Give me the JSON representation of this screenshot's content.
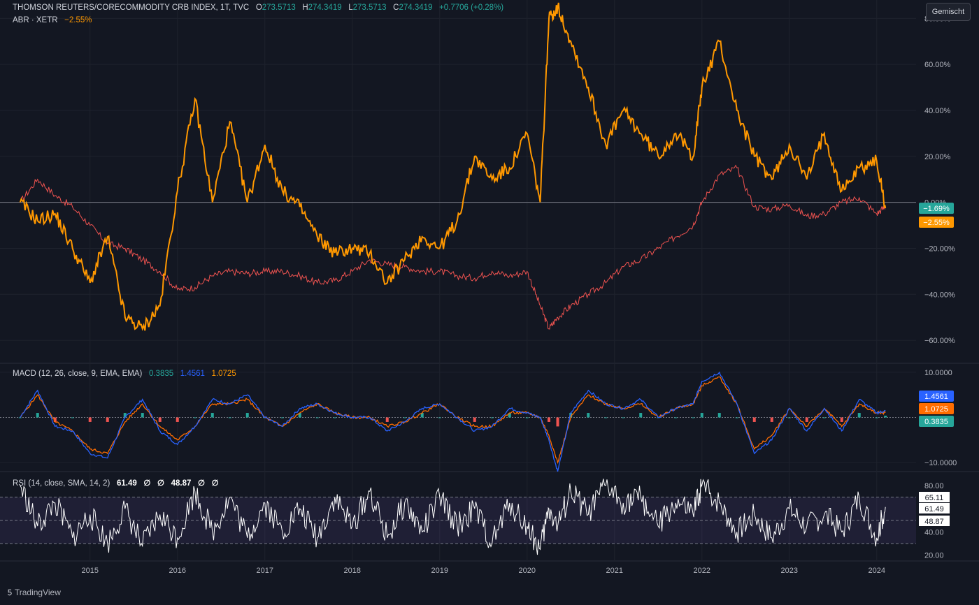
{
  "header": {
    "symbol": "THOMSON REUTERS/CORECOMMODITY CRB INDEX, 1T, TVC",
    "o_label": "O",
    "o_value": "273.5713",
    "h_label": "H",
    "h_value": "274.3419",
    "l_label": "L",
    "l_value": "273.5713",
    "c_label": "C",
    "c_value": "274.3419",
    "change": "+0.7706 (+0.28%)",
    "compare_symbol": "ABR · XETR",
    "compare_change": "−2.55%",
    "scale_button": "Gemischt"
  },
  "macd": {
    "label": "MACD (12, 26, close, 9, EMA, EMA)",
    "hist": "0.3835",
    "macd": "1.4561",
    "signal": "1.0725"
  },
  "rsi": {
    "label": "RSI (14, close, SMA, 14, 2)",
    "value": "61.49",
    "na1": "∅",
    "na2": "∅",
    "ma": "48.87",
    "na3": "∅",
    "na4": "∅"
  },
  "footer": {
    "brand": "TradingView",
    "logo": "tradingview-logo-icon"
  },
  "colors": {
    "background": "#131722",
    "crb_up": "#26a69a",
    "crb_down": "#ef5350",
    "abr": "#ff9800",
    "macd_line": "#2962ff",
    "signal_line": "#ff6d00",
    "rsi_line": "#ffffff"
  },
  "chart_data": [
    {
      "type": "line",
      "title": "THOMSON REUTERS/CORECOMMODITY CRB INDEX, 1T, TVC",
      "ylabel": "",
      "y_unit": "%",
      "ylim": [
        -70,
        88
      ],
      "y_ticks": [
        "80.00%",
        "60.00%",
        "40.00%",
        "20.00%",
        "0.00%",
        "−20.00%",
        "−40.00%",
        "−60.00%"
      ],
      "x_ticks": [
        "2015",
        "2016",
        "2017",
        "2018",
        "2019",
        "2020",
        "2021",
        "2022",
        "2023",
        "2024"
      ],
      "x": [
        2014.2,
        2014.4,
        2014.6,
        2014.8,
        2015.0,
        2015.2,
        2015.4,
        2015.6,
        2015.8,
        2016.0,
        2016.2,
        2016.4,
        2016.6,
        2016.8,
        2017.0,
        2017.2,
        2017.4,
        2017.6,
        2017.8,
        2018.0,
        2018.2,
        2018.4,
        2018.6,
        2018.8,
        2019.0,
        2019.2,
        2019.4,
        2019.6,
        2019.8,
        2020.0,
        2020.15,
        2020.25,
        2020.35,
        2020.5,
        2020.7,
        2020.9,
        2021.1,
        2021.3,
        2021.5,
        2021.7,
        2021.9,
        2022.0,
        2022.2,
        2022.4,
        2022.6,
        2022.8,
        2023.0,
        2023.2,
        2023.4,
        2023.6,
        2023.8,
        2024.0,
        2024.1
      ],
      "series": [
        {
          "name": "THOMSON REUTERS/CORECOMMODITY CRB INDEX",
          "values": [
            0,
            10,
            3,
            -2,
            -10,
            -18,
            -20,
            -25,
            -30,
            -38,
            -37,
            -32,
            -30,
            -31,
            -30,
            -30,
            -32,
            -35,
            -34,
            -30,
            -25,
            -27,
            -28,
            -30,
            -30,
            -32,
            -33,
            -30,
            -32,
            -30,
            -45,
            -55,
            -50,
            -45,
            -40,
            -35,
            -28,
            -25,
            -20,
            -15,
            -10,
            0,
            12,
            15,
            -2,
            -3,
            -1,
            -6,
            -5,
            0,
            2,
            -5,
            -1.69
          ]
        },
        {
          "name": "ABR · XETR",
          "values": [
            0,
            -8,
            -5,
            -20,
            -35,
            -15,
            -50,
            -55,
            -45,
            5,
            45,
            0,
            35,
            0,
            25,
            5,
            -2,
            -15,
            -22,
            -20,
            -22,
            -35,
            -25,
            -15,
            -20,
            -8,
            20,
            10,
            15,
            30,
            0,
            80,
            85,
            70,
            50,
            25,
            40,
            30,
            20,
            30,
            20,
            50,
            70,
            40,
            20,
            10,
            25,
            10,
            30,
            5,
            15,
            18,
            -2.55
          ]
        }
      ]
    },
    {
      "type": "line",
      "title": "MACD (12, 26, close, 9, EMA, EMA)",
      "ylim": [
        -12,
        12
      ],
      "y_ticks": [
        "10.0000",
        "−10.0000"
      ],
      "series": [
        {
          "name": "MACD",
          "values": [
            0,
            6,
            -2,
            -3,
            -8,
            -9,
            0,
            4,
            -3,
            -6,
            -2,
            4,
            3,
            5,
            0,
            -2,
            2,
            3,
            1,
            0,
            0,
            -3,
            -1,
            2,
            3,
            0,
            -3,
            -2,
            2,
            1,
            0,
            -5,
            -12,
            1,
            6,
            3,
            2,
            4,
            0,
            2,
            3,
            8,
            10,
            3,
            -8,
            -5,
            2,
            -3,
            2,
            -3,
            4,
            1,
            1.4561
          ]
        },
        {
          "name": "Signal",
          "values": [
            0,
            5,
            -1,
            -3,
            -7,
            -8,
            -1,
            3,
            -2,
            -5,
            -2,
            3,
            3,
            4,
            0,
            -2,
            1,
            3,
            1,
            0,
            0,
            -2,
            -1,
            1,
            3,
            0,
            -2,
            -2,
            1,
            1,
            0,
            -4,
            -10,
            0,
            5,
            3,
            2,
            3,
            0,
            2,
            3,
            7,
            9,
            3,
            -7,
            -4,
            2,
            -2,
            2,
            -2,
            3,
            1,
            1.0725
          ]
        },
        {
          "name": "Histogram",
          "values": [
            0,
            1,
            -1,
            0,
            -1,
            -1,
            1,
            1,
            -1,
            -1,
            0,
            1,
            0,
            1,
            0,
            0,
            1,
            0,
            0,
            0,
            0,
            -1,
            0,
            1,
            0,
            0,
            -1,
            0,
            1,
            0,
            0,
            -1,
            -2,
            1,
            1,
            0,
            0,
            1,
            0,
            0,
            0,
            1,
            1,
            0,
            -1,
            -1,
            0,
            -1,
            0,
            -1,
            1,
            0,
            0.3835
          ]
        }
      ]
    },
    {
      "type": "line",
      "title": "RSI (14, close, SMA, 14, 2)",
      "ylim": [
        15,
        92
      ],
      "y_ticks": [
        "80.00",
        "60.00",
        "40.00",
        "20.00"
      ],
      "bands": [
        70,
        50,
        30
      ],
      "series": [
        {
          "name": "RSI",
          "values": [
            80,
            45,
            65,
            35,
            55,
            30,
            60,
            28,
            55,
            35,
            75,
            40,
            70,
            35,
            65,
            40,
            60,
            35,
            70,
            45,
            75,
            35,
            65,
            40,
            70,
            45,
            60,
            30,
            65,
            45,
            25,
            60,
            45,
            75,
            55,
            80,
            65,
            70,
            45,
            65,
            55,
            80,
            65,
            40,
            55,
            35,
            60,
            45,
            55,
            40,
            70,
            35,
            61.49
          ]
        },
        {
          "name": "RSI MA",
          "values": [
            60,
            55,
            52,
            48,
            45,
            44,
            46,
            45,
            47,
            48,
            52,
            55,
            54,
            50,
            52,
            50,
            49,
            48,
            52,
            55,
            54,
            52,
            50,
            51,
            52,
            53,
            50,
            47,
            50,
            48,
            42,
            45,
            52,
            58,
            62,
            63,
            65,
            62,
            58,
            57,
            60,
            63,
            62,
            55,
            48,
            46,
            48,
            49,
            48,
            49,
            52,
            48,
            48.87
          ]
        }
      ],
      "labels_right": [
        "65.11",
        "61.49",
        "48.87"
      ]
    }
  ]
}
